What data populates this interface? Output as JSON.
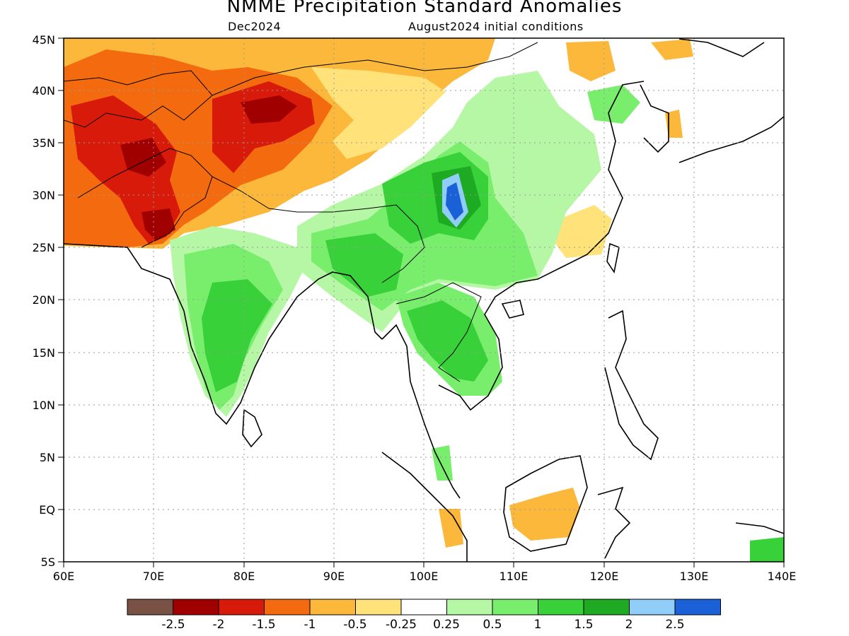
{
  "title": "NMME Precipitation Standard Anomalies",
  "subtitle_left": "Dec2024",
  "subtitle_right": "August2024 initial conditions",
  "map": {
    "lon_range": [
      60,
      140
    ],
    "lat_range": [
      -5,
      45
    ],
    "lon_labels": [
      "60E",
      "70E",
      "80E",
      "90E",
      "100E",
      "110E",
      "120E",
      "130E",
      "140E"
    ],
    "lat_labels": [
      "5S",
      "EQ",
      "5N",
      "10N",
      "15N",
      "20N",
      "25N",
      "30N",
      "35N",
      "40N",
      "45N"
    ],
    "grid": "dotted"
  },
  "legend": {
    "colors": [
      "#7a5245",
      "#a00000",
      "#d81a0a",
      "#f46a0e",
      "#fbb83a",
      "#ffe27a",
      "#ffffff",
      "#b6f7a6",
      "#79ee6d",
      "#38d13a",
      "#1eab23",
      "#90cdf8",
      "#1a60d6"
    ],
    "labels": [
      "-2.5",
      "-2",
      "-1.5",
      "-1",
      "-0.5",
      "-0.25",
      "0.25",
      "0.5",
      "1",
      "1.5",
      "2",
      "2.5"
    ]
  }
}
